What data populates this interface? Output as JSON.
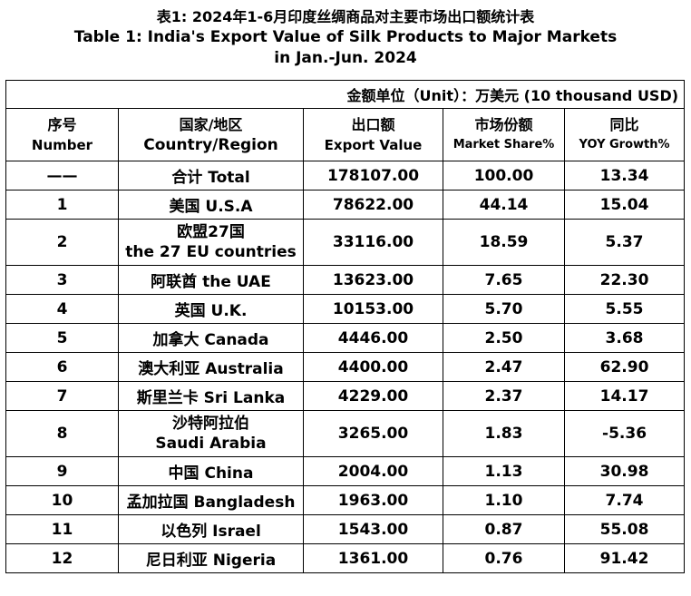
{
  "title_cn": "表1: 2024年1-6月印度丝绸商品对主要市场出口额统计表",
  "title_en": "Table 1: India's Export Value of Silk Products to Major Markets",
  "title_period": "in Jan.-Jun. 2024",
  "unit_text": "金额单位（Unit）：万美元 (10 thousand USD)",
  "headers": [
    {
      "cn": "序号",
      "en": "Number"
    },
    {
      "cn": "国家/地区",
      "en": "Country/Region"
    },
    {
      "cn": "出口额",
      "en": "Export Value"
    },
    {
      "cn": "市场份额",
      "en": "Market Share%"
    },
    {
      "cn": "同比",
      "en": "YOY Growth%"
    }
  ],
  "rows": [
    {
      "num": "——",
      "country": "合计 Total",
      "country2": "",
      "value": "178107.00",
      "share": "100.00",
      "yoy": "13.34"
    },
    {
      "num": "1",
      "country": "美国 U.S.A",
      "country2": "",
      "value": "78622.00",
      "share": "44.14",
      "yoy": "15.04"
    },
    {
      "num": "2",
      "country": "欧盟27国",
      "country2": "the 27 EU countries",
      "value": "33116.00",
      "share": "18.59",
      "yoy": "5.37"
    },
    {
      "num": "3",
      "country": "阿联酋 the UAE",
      "country2": "",
      "value": "13623.00",
      "share": "7.65",
      "yoy": "22.30"
    },
    {
      "num": "4",
      "country": "英国 U.K.",
      "country2": "",
      "value": "10153.00",
      "share": "5.70",
      "yoy": "5.55"
    },
    {
      "num": "5",
      "country": "加拿大 Canada",
      "country2": "",
      "value": "4446.00",
      "share": "2.50",
      "yoy": "3.68"
    },
    {
      "num": "6",
      "country": "澳大利亚 Australia",
      "country2": "",
      "value": "4400.00",
      "share": "2.47",
      "yoy": "62.90"
    },
    {
      "num": "7",
      "country": "斯里兰卡 Sri Lanka",
      "country2": "",
      "value": "4229.00",
      "share": "2.37",
      "yoy": "14.17"
    },
    {
      "num": "8",
      "country": "沙特阿拉伯",
      "country2": "Saudi Arabia",
      "value": "3265.00",
      "share": "1.83",
      "yoy": "-5.36"
    },
    {
      "num": "9",
      "country": "中国 China",
      "country2": "",
      "value": "2004.00",
      "share": "1.13",
      "yoy": "30.98"
    },
    {
      "num": "10",
      "country": "孟加拉国 Bangladesh",
      "country2": "",
      "value": "1963.00",
      "share": "1.10",
      "yoy": "7.74"
    },
    {
      "num": "11",
      "country": "以色列 Israel",
      "country2": "",
      "value": "1543.00",
      "share": "0.87",
      "yoy": "55.08"
    },
    {
      "num": "12",
      "country": "尼日利亚 Nigeria",
      "country2": "",
      "value": "1361.00",
      "share": "0.76",
      "yoy": "91.42"
    }
  ]
}
